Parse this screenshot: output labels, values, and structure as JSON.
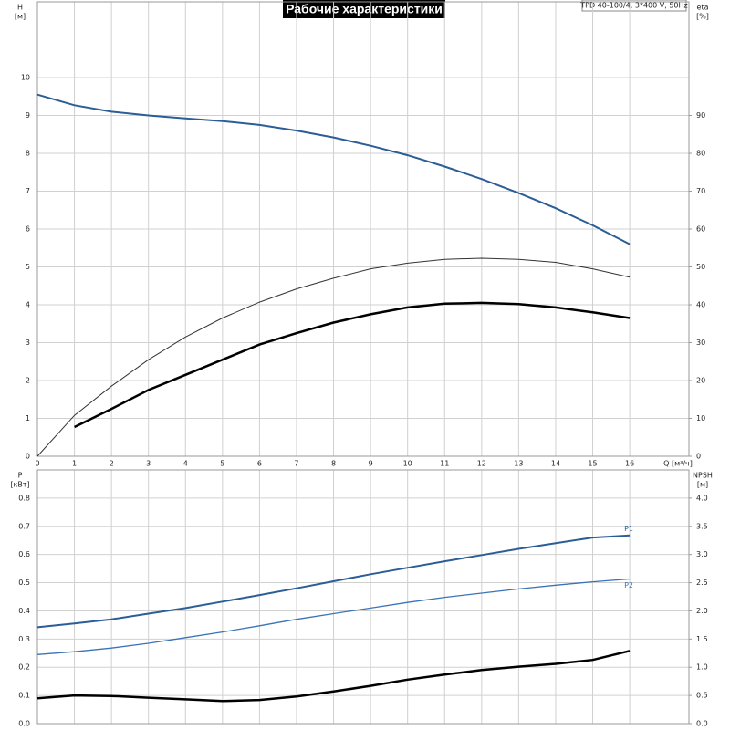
{
  "title": "Рабочие характеристики",
  "model": "TPD 40-100/4, 3*400 V, 50Hz",
  "chart_data": [
    {
      "type": "line",
      "xlabel": "Q [м³/ч]",
      "ylabel": "H",
      "ylabel_unit": "[м]",
      "y2label": "eta",
      "y2label_unit": "[%]",
      "x": [
        0,
        1,
        2,
        3,
        4,
        5,
        6,
        7,
        8,
        9,
        10,
        11,
        12,
        13,
        14,
        15,
        16
      ],
      "xlim": [
        0,
        17.6
      ],
      "xticks": [
        0,
        1,
        2,
        3,
        4,
        5,
        6,
        7,
        8,
        9,
        10,
        11,
        12,
        13,
        14,
        15,
        16
      ],
      "ylim": [
        0,
        12
      ],
      "yticks": [
        0,
        1,
        2,
        3,
        4,
        5,
        6,
        7,
        8,
        9,
        10
      ],
      "y2lim": [
        0,
        120
      ],
      "y2ticks": [
        0,
        10,
        20,
        30,
        40,
        50,
        60,
        70,
        80,
        90
      ],
      "grid": true,
      "series": [
        {
          "color": "#2b5d97",
          "width": 2,
          "values": [
            9.55,
            9.27,
            9.1,
            9.0,
            8.92,
            8.85,
            8.75,
            8.6,
            8.42,
            8.2,
            7.95,
            7.65,
            7.32,
            6.95,
            6.55,
            6.1,
            5.6
          ]
        },
        {
          "color": "#333333",
          "width": 1,
          "axis": "y2",
          "values": [
            0,
            10.8,
            18.5,
            25.5,
            31.5,
            36.5,
            40.7,
            44.2,
            47,
            49.5,
            51,
            52,
            52.3,
            52,
            51.2,
            49.5,
            47.3
          ]
        },
        {
          "color": "#000000",
          "width": 2.5,
          "axis": "y2",
          "values": [
            null,
            7.7,
            12.5,
            17.5,
            21.5,
            25.5,
            29.5,
            32.5,
            35.3,
            37.5,
            39.3,
            40.3,
            40.5,
            40.2,
            39.3,
            38,
            36.5
          ]
        }
      ]
    },
    {
      "type": "line",
      "ylabel": "P",
      "ylabel_unit": "[кВт]",
      "y2label": "NPSH",
      "y2label_unit": "[м]",
      "x": [
        0,
        1,
        2,
        3,
        4,
        5,
        6,
        7,
        8,
        9,
        10,
        11,
        12,
        13,
        14,
        15,
        16
      ],
      "xlim": [
        0,
        17.6
      ],
      "xticks": [
        0,
        1,
        2,
        3,
        4,
        5,
        6,
        7,
        8,
        9,
        10,
        11,
        12,
        13,
        14,
        15,
        16
      ],
      "ylim": [
        0,
        0.9
      ],
      "yticks": [
        {
          "value": 0,
          "label": "0.0"
        },
        0.1,
        0.2,
        0.3,
        0.4,
        0.5,
        0.6,
        0.7,
        0.8
      ],
      "y2lim": [
        0,
        4.5
      ],
      "y2ticks": [
        {
          "value": 0,
          "label": "0.0"
        },
        0.5,
        {
          "value": 1,
          "label": "1.0"
        },
        1.5,
        {
          "value": 2,
          "label": "2.0"
        },
        2.5,
        {
          "value": 3,
          "label": "3.0"
        },
        3.5,
        {
          "value": 4,
          "label": "4.0"
        }
      ],
      "grid": true,
      "series": [
        {
          "name": "P1",
          "color": "#2b5d97",
          "width": 2,
          "values": [
            0.342,
            0.355,
            0.37,
            0.39,
            0.41,
            0.433,
            0.456,
            0.48,
            0.505,
            0.53,
            0.553,
            0.576,
            0.598,
            0.62,
            0.64,
            0.66,
            0.668
          ]
        },
        {
          "name": "P2",
          "color": "#3a74b6",
          "width": 1.3,
          "values": [
            0.245,
            0.255,
            0.268,
            0.285,
            0.305,
            0.325,
            0.347,
            0.37,
            0.39,
            0.41,
            0.43,
            0.448,
            0.463,
            0.478,
            0.491,
            0.503,
            0.513
          ]
        },
        {
          "color": "#000000",
          "width": 2.5,
          "axis": "y2",
          "values": [
            0.45,
            0.5,
            0.49,
            0.46,
            0.43,
            0.4,
            0.42,
            0.48,
            0.57,
            0.67,
            0.78,
            0.87,
            0.95,
            1.01,
            1.06,
            1.13,
            1.29
          ]
        }
      ]
    }
  ]
}
